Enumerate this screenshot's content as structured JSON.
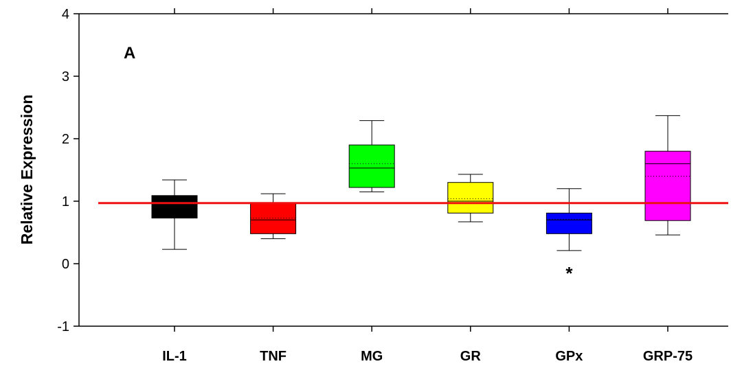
{
  "chart_data": {
    "type": "box",
    "panel_label": "A",
    "ylabel": "Relative Expression",
    "xlabel": "",
    "ylim": [
      -1,
      4
    ],
    "yticks": [
      -1,
      0,
      1,
      2,
      3,
      4
    ],
    "grid": false,
    "reference_line": {
      "y": 0.97,
      "color": "#ee1111"
    },
    "categories": [
      "IL-1",
      "TNF",
      "MG",
      "GR",
      "GPx",
      "GRP-75"
    ],
    "boxes": [
      {
        "category": "IL-1",
        "whisker_low": 0.23,
        "q1": 0.73,
        "median": 1.0,
        "mean": 1.0,
        "q3": 1.09,
        "whisker_high": 1.34,
        "color": "#000000"
      },
      {
        "category": "TNF",
        "whisker_low": 0.4,
        "q1": 0.48,
        "median": 0.7,
        "mean": 0.73,
        "q3": 0.97,
        "whisker_high": 1.12,
        "color": "#ff0000"
      },
      {
        "category": "MG",
        "whisker_low": 1.15,
        "q1": 1.22,
        "median": 1.53,
        "mean": 1.6,
        "q3": 1.9,
        "whisker_high": 2.29,
        "color": "#00ff00"
      },
      {
        "category": "GR",
        "whisker_low": 0.67,
        "q1": 0.81,
        "median": 1.0,
        "mean": 1.04,
        "q3": 1.3,
        "whisker_high": 1.43,
        "color": "#ffff00"
      },
      {
        "category": "GPx",
        "whisker_low": 0.21,
        "q1": 0.48,
        "median": 0.7,
        "mean": 0.71,
        "q3": 0.81,
        "whisker_high": 1.2,
        "color": "#0000ff"
      },
      {
        "category": "GRP-75",
        "whisker_low": 0.46,
        "q1": 0.69,
        "median": 1.6,
        "mean": 1.4,
        "q3": 1.8,
        "whisker_high": 2.37,
        "color": "#ff00ff"
      }
    ],
    "annotations": [
      {
        "category": "GPx",
        "text": "*",
        "y": -0.1
      }
    ]
  }
}
